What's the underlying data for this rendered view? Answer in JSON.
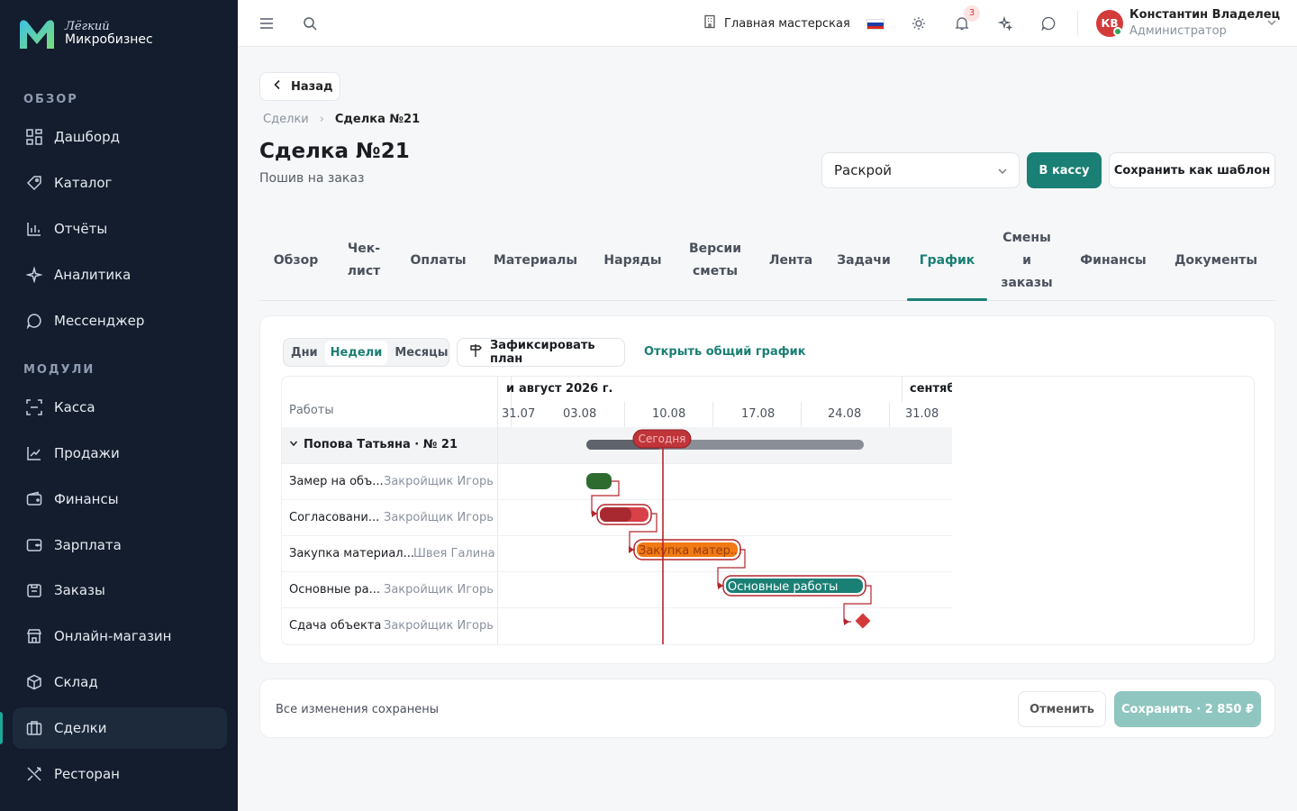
{
  "brand": {
    "line1": "Лёгкий",
    "line2": "Микробизнес"
  },
  "sidebar": {
    "section_overview": "ОБЗОР",
    "section_modules": "МОДУЛИ",
    "overview_items": [
      {
        "label": "Дашборд",
        "icon": "dashboard-icon"
      },
      {
        "label": "Каталог",
        "icon": "catalog-icon"
      },
      {
        "label": "Отчёты",
        "icon": "reports-icon"
      },
      {
        "label": "Аналитика",
        "icon": "analytics-icon"
      },
      {
        "label": "Мессенджер",
        "icon": "messenger-icon"
      }
    ],
    "module_items": [
      {
        "label": "Касса",
        "icon": "cashbox-icon"
      },
      {
        "label": "Продажи",
        "icon": "sales-icon"
      },
      {
        "label": "Финансы",
        "icon": "finance-icon"
      },
      {
        "label": "Зарплата",
        "icon": "salary-icon"
      },
      {
        "label": "Заказы",
        "icon": "orders-icon"
      },
      {
        "label": "Онлайн-магазин",
        "icon": "store-icon"
      },
      {
        "label": "Склад",
        "icon": "warehouse-icon"
      },
      {
        "label": "Сделки",
        "icon": "deals-icon",
        "active": true
      },
      {
        "label": "Ресторан",
        "icon": "restaurant-icon"
      }
    ]
  },
  "topbar": {
    "workshop": "Главная мастерская",
    "notifications_count": "3",
    "user_initials": "КВ",
    "user_name": "Константин Владелец",
    "user_role": "Администратор"
  },
  "page": {
    "back_label": "Назад",
    "breadcrumb_root": "Сделки",
    "breadcrumb_current": "Сделка №21",
    "title": "Сделка №21",
    "subtitle": "Пошив на заказ",
    "stage_value": "Раскрой",
    "kassa_label": "В кассу",
    "template_label": "Сохранить как шаблон"
  },
  "tabs": [
    {
      "label": "Обзор"
    },
    {
      "label": "Чек-\nлист"
    },
    {
      "label": "Оплаты"
    },
    {
      "label": "Материалы"
    },
    {
      "label": "Наряды"
    },
    {
      "label": "Версии\nсметы"
    },
    {
      "label": "Лента"
    },
    {
      "label": "Задачи"
    },
    {
      "label": "График",
      "active": true
    },
    {
      "label": "Смены\nи\nзаказы"
    },
    {
      "label": "Финансы"
    },
    {
      "label": "Документы"
    }
  ],
  "schedule": {
    "scale_options": [
      "Дни",
      "Недели",
      "Месяцы"
    ],
    "scale_selected": "Недели",
    "fix_plan_label": "Зафиксировать план",
    "open_general_label": "Открыть общий график",
    "works_header": "Работы",
    "months": [
      "и",
      "август 2026 г.",
      "сентябр"
    ],
    "weeks": [
      "31.07",
      "03.08",
      "10.08",
      "17.08",
      "24.08",
      "31.08"
    ],
    "today_label": "Сегодня",
    "group_label": "Попова Татьяна · № 21",
    "tasks": [
      {
        "name": "Замер на объ...",
        "assignee": "Закройщик Игорь",
        "bar_label": ""
      },
      {
        "name": "Согласовани...",
        "assignee": "Закройщик Игорь",
        "bar_label": ""
      },
      {
        "name": "Закупка материал...",
        "assignee": "Швея Галина",
        "bar_label": "Закупка матер..."
      },
      {
        "name": "Основные ра...",
        "assignee": "Закройщик Игорь",
        "bar_label": "Основные работы"
      },
      {
        "name": "Сдача объекта",
        "assignee": "Закройщик Игорь",
        "bar_label": ""
      }
    ]
  },
  "footer": {
    "status": "Все изменения сохранены",
    "cancel_label": "Отменить",
    "save_label": "Сохранить · 2 850 ₽"
  },
  "colors": {
    "accent": "#1a7f74",
    "sidebar_bg": "#131d2e",
    "today_line": "#b3262d",
    "bar_green": "#2e6b2f",
    "bar_red": "#c0353a",
    "bar_orange": "#f07a14",
    "bar_teal": "#1a7f74",
    "summary_bar": "#8a8f97"
  }
}
